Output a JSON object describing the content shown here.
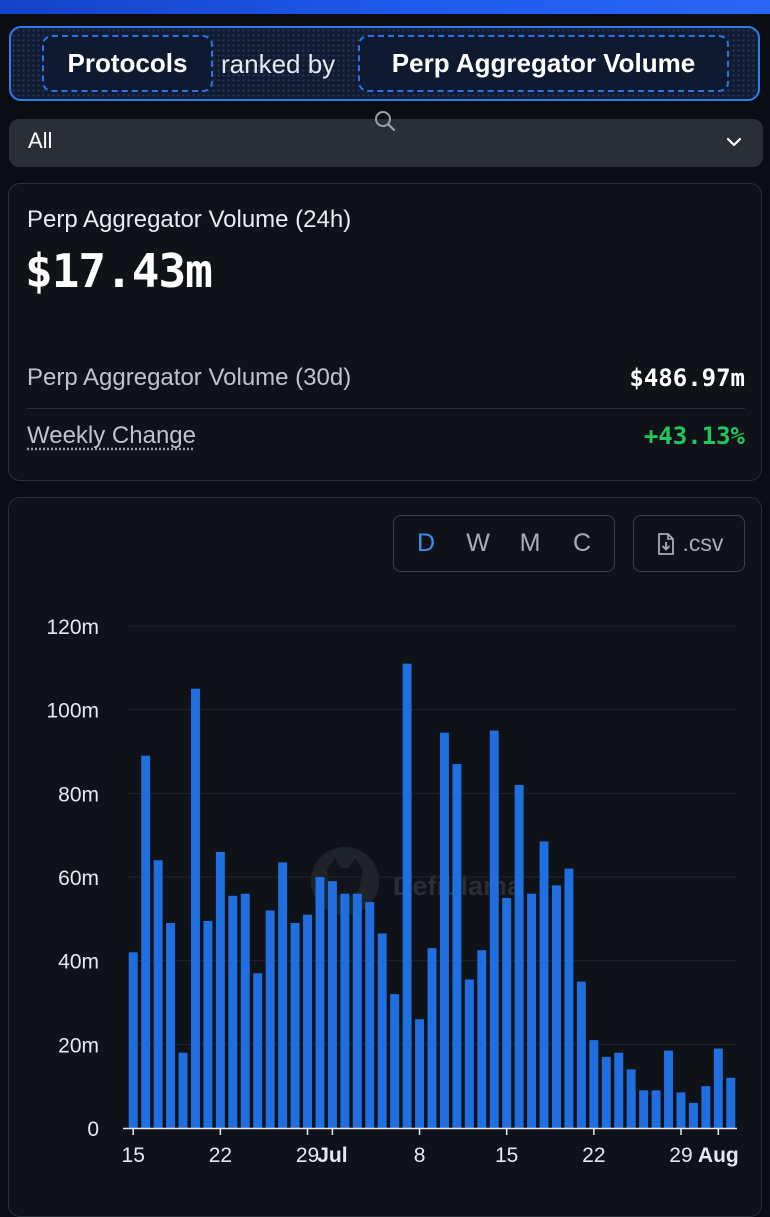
{
  "selector": {
    "entity": "Protocols",
    "connector": "ranked by",
    "metric": "Perp Aggregator Volume"
  },
  "filter": {
    "selected": "All"
  },
  "stats": {
    "volume_24h_label": "Perp Aggregator Volume (24h)",
    "volume_24h_value": "$17.43m",
    "volume_30d_label": "Perp Aggregator Volume (30d)",
    "volume_30d_value": "$486.97m",
    "weekly_change_label": "Weekly Change",
    "weekly_change_value": "+43.13%",
    "positive_color": "#22c55e"
  },
  "chart_controls": {
    "periods": [
      "D",
      "W",
      "M",
      "C"
    ],
    "active_period": "D",
    "csv_label": ".csv"
  },
  "watermark": "DefiLlama",
  "colors": {
    "bar": "#1f6fe0",
    "accent": "#3f8cf2",
    "border": "#2f7cf0"
  },
  "chart_data": {
    "type": "bar",
    "xlabel": "",
    "ylabel": "",
    "ylim": [
      0,
      120
    ],
    "y_ticks": [
      "0",
      "20m",
      "40m",
      "60m",
      "80m",
      "100m",
      "120m"
    ],
    "x_tick_labels": [
      {
        "label": "15",
        "index": 0
      },
      {
        "label": "22",
        "index": 7
      },
      {
        "label": "29",
        "index": 14
      },
      {
        "label": "Jul",
        "index": 16
      },
      {
        "label": "8",
        "index": 23
      },
      {
        "label": "15",
        "index": 30
      },
      {
        "label": "22",
        "index": 37
      },
      {
        "label": "29",
        "index": 44
      },
      {
        "label": "Aug",
        "index": 47
      }
    ],
    "grid": true,
    "series": [
      {
        "values": [
          42,
          89,
          64,
          49,
          18,
          105,
          49.5,
          66,
          55.5,
          56,
          37,
          52,
          63.5,
          49,
          51,
          60,
          59,
          56,
          56,
          54,
          46.5,
          32,
          111,
          26,
          43,
          94.5,
          87,
          35.5,
          42.5,
          95,
          55,
          82,
          56,
          68.5,
          58,
          62,
          35,
          21,
          17,
          18,
          14,
          9,
          9,
          18.5,
          8.5,
          6,
          10,
          19,
          12
        ]
      }
    ],
    "unit": "USD (millions)"
  }
}
